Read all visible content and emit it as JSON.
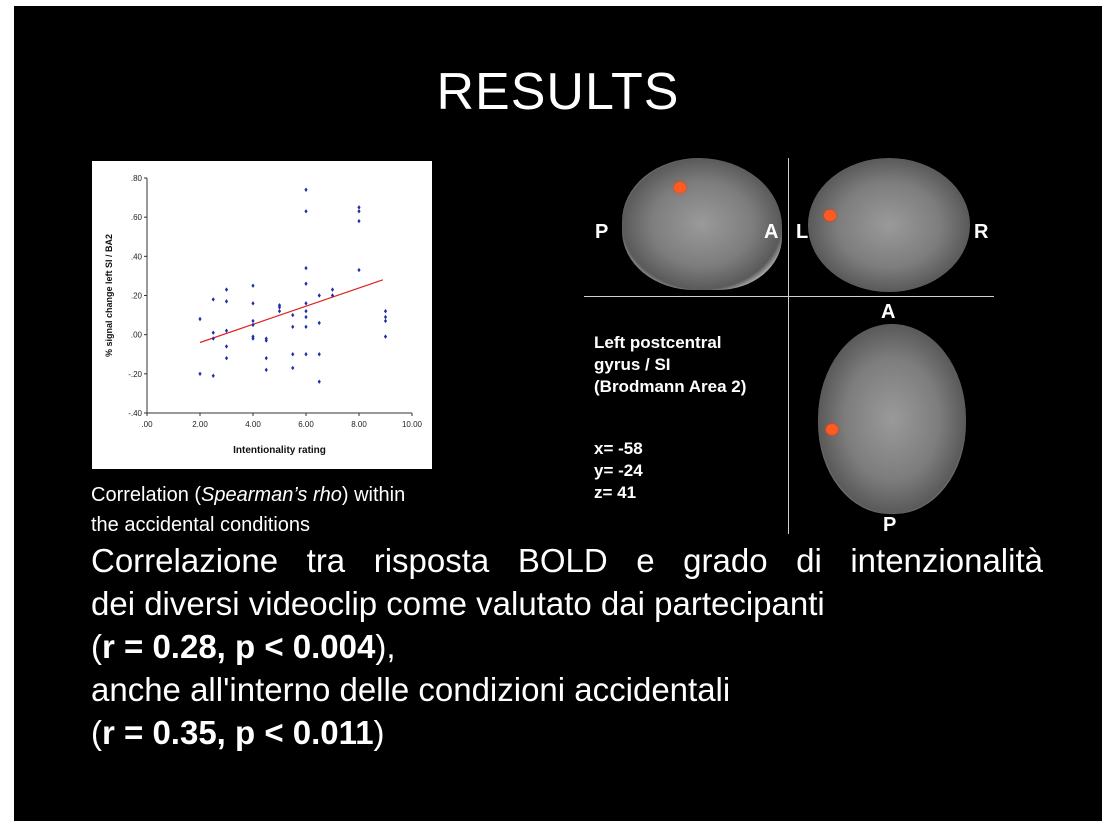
{
  "slide": {
    "title": "RESULTS",
    "caption": {
      "part1": "Correlation (",
      "italic": "Spearman’s rho",
      "part2": ") within",
      "line2": "the accidental conditions"
    },
    "region": {
      "line1": "Left postcentral",
      "line2": "gyrus / SI",
      "line3": "(Brodmann Area 2)"
    },
    "coords": {
      "x": "x= -58",
      "y": "y= -24",
      "z": "z= 41"
    },
    "orientation": {
      "sagittal_left": "P",
      "sagittal_right": "A",
      "coronal_left": "L",
      "coronal_right": "R",
      "axial_top": "A",
      "axial_bottom": "P"
    },
    "body": {
      "line1": "Correlazione tra risposta BOLD e grado di intenzionalità",
      "line2": "dei diversi videoclip come valutato dai partecipanti",
      "stat1_open": "(",
      "stat1_bold": "r = 0.28, p < 0.004",
      "stat1_close": "),",
      "line4": "anche all'interno delle condizioni accidentali",
      "stat2_open": "(",
      "stat2_bold": "r = 0.35, p < 0.011",
      "stat2_close": ")"
    }
  },
  "chart_data": {
    "type": "scatter",
    "xlabel": "Intentionality rating",
    "ylabel": "% signal change left SI / BA2",
    "xlim": [
      0,
      10
    ],
    "ylim": [
      -0.4,
      0.8
    ],
    "xticks": [
      ".00",
      "2.00",
      "4.00",
      "6.00",
      "8.00",
      "10.00"
    ],
    "yticks": [
      "-.40",
      "-.20",
      ".00",
      ".20",
      ".40",
      ".60",
      ".80"
    ],
    "grid": false,
    "point_color": "#1f2fa8",
    "trend_color": "#e02020",
    "points": [
      [
        2.0,
        0.08
      ],
      [
        2.0,
        -0.2
      ],
      [
        2.5,
        0.18
      ],
      [
        2.5,
        0.01
      ],
      [
        2.5,
        -0.02
      ],
      [
        2.5,
        -0.21
      ],
      [
        3.0,
        0.23
      ],
      [
        3.0,
        0.17
      ],
      [
        3.0,
        0.02
      ],
      [
        3.0,
        -0.06
      ],
      [
        3.0,
        -0.12
      ],
      [
        4.0,
        0.25
      ],
      [
        4.0,
        0.16
      ],
      [
        4.0,
        0.07
      ],
      [
        4.0,
        0.05
      ],
      [
        4.0,
        -0.01
      ],
      [
        4.0,
        -0.02
      ],
      [
        4.5,
        -0.02
      ],
      [
        4.5,
        -0.03
      ],
      [
        4.5,
        -0.12
      ],
      [
        4.5,
        -0.18
      ],
      [
        5.0,
        0.15
      ],
      [
        5.0,
        0.14
      ],
      [
        5.0,
        0.12
      ],
      [
        5.5,
        0.1
      ],
      [
        5.5,
        0.04
      ],
      [
        5.5,
        -0.1
      ],
      [
        5.5,
        -0.17
      ],
      [
        6.0,
        0.74
      ],
      [
        6.0,
        0.63
      ],
      [
        6.0,
        0.34
      ],
      [
        6.0,
        0.26
      ],
      [
        6.0,
        0.16
      ],
      [
        6.0,
        0.12
      ],
      [
        6.0,
        0.09
      ],
      [
        6.0,
        0.04
      ],
      [
        6.0,
        -0.1
      ],
      [
        6.5,
        0.2
      ],
      [
        6.5,
        0.06
      ],
      [
        6.5,
        -0.1
      ],
      [
        6.5,
        -0.24
      ],
      [
        7.0,
        0.23
      ],
      [
        7.0,
        0.2
      ],
      [
        8.0,
        0.65
      ],
      [
        8.0,
        0.63
      ],
      [
        8.0,
        0.58
      ],
      [
        8.0,
        0.33
      ],
      [
        9.0,
        0.12
      ],
      [
        9.0,
        0.09
      ],
      [
        9.0,
        0.07
      ],
      [
        9.0,
        -0.01
      ]
    ],
    "trend": {
      "x": [
        2.0,
        8.9
      ],
      "y": [
        -0.04,
        0.28
      ]
    }
  }
}
